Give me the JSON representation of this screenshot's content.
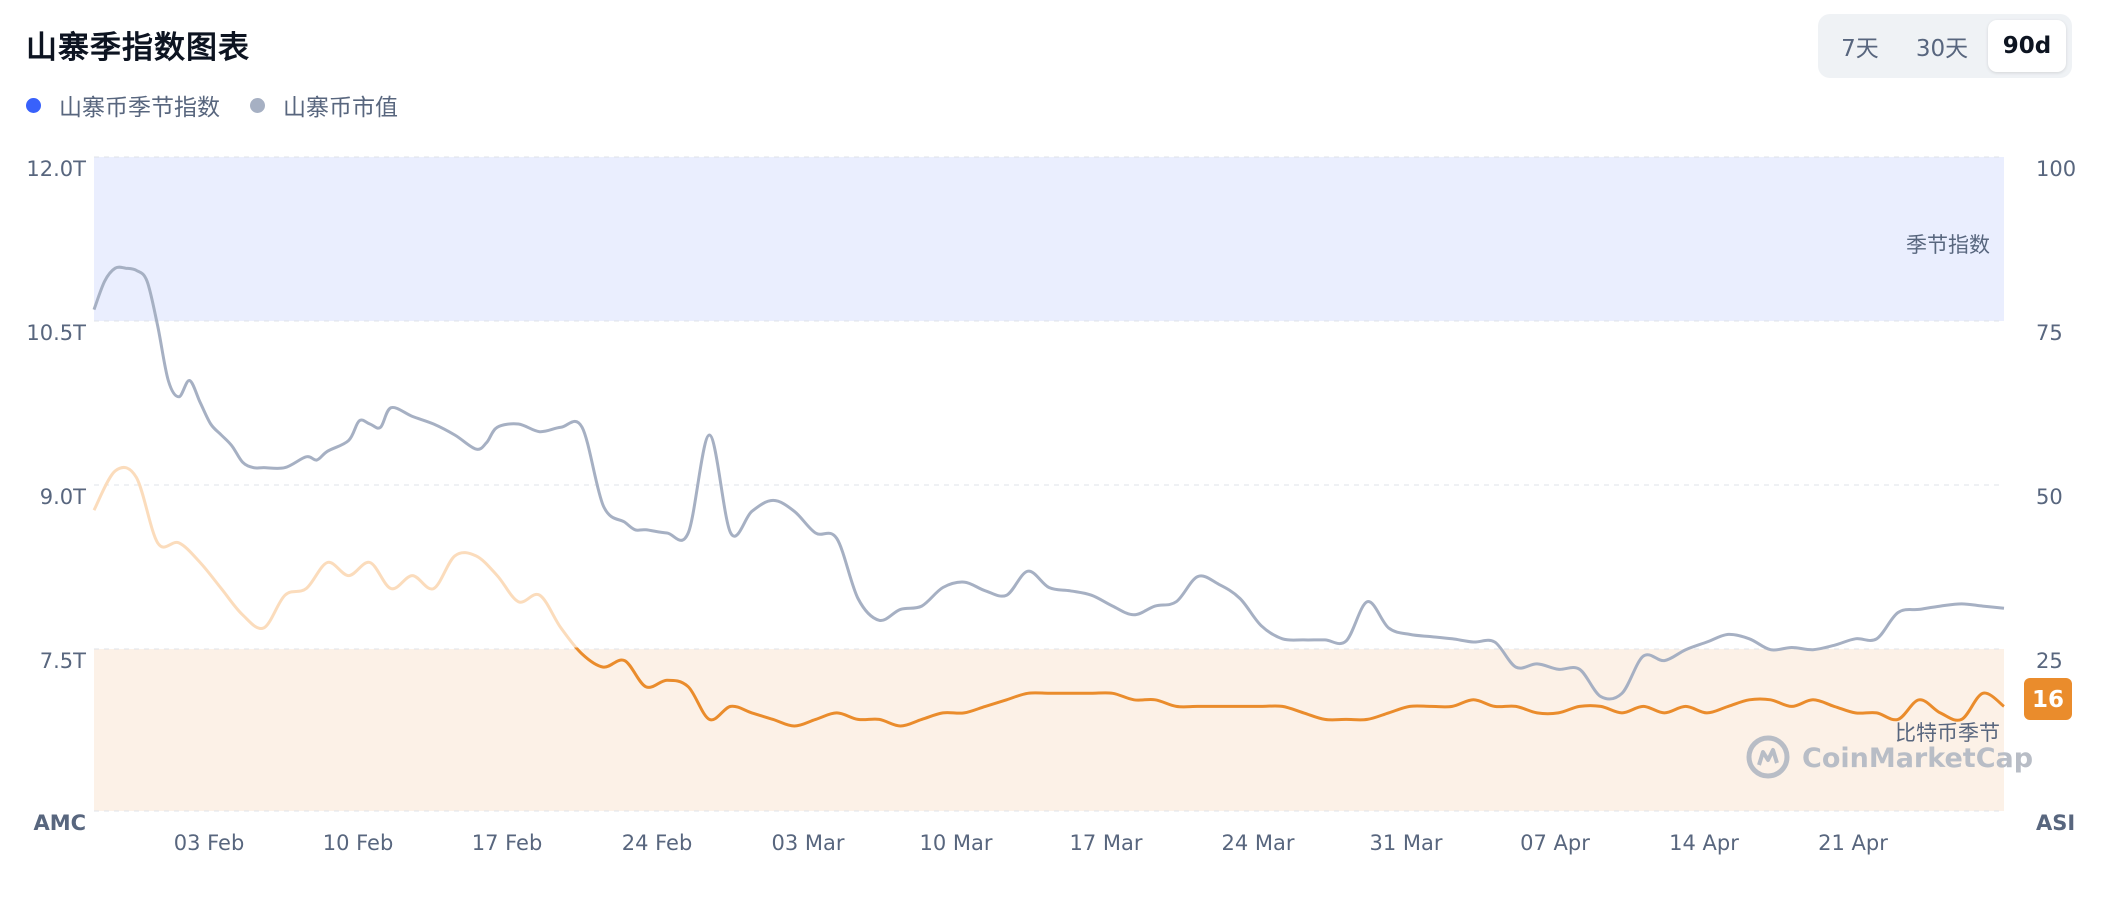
{
  "title": "山寨季指数图表",
  "legend": [
    {
      "label": "山寨币季节指数",
      "color": "#3861fb"
    },
    {
      "label": "山寨币市值",
      "color": "#a6b0c3"
    }
  ],
  "range_buttons": [
    {
      "label": "7天",
      "active": false
    },
    {
      "label": "30天",
      "active": false
    },
    {
      "label": "90d",
      "active": true
    }
  ],
  "zones": {
    "altcoin_season": "季节指数",
    "bitcoin_season": "比特币季节"
  },
  "watermark": "CoinMarketCap",
  "current_index_badge": "16",
  "chart_data": {
    "type": "line",
    "left_axis_title": "AMC",
    "right_axis_title": "ASI",
    "left_ticks": [
      "12.0T",
      "10.5T",
      "9.0T",
      "7.5T"
    ],
    "right_ticks": [
      "100",
      "75",
      "50",
      "25"
    ],
    "x_ticks": [
      "03 Feb",
      "10 Feb",
      "17 Feb",
      "24 Feb",
      "03 Mar",
      "10 Mar",
      "17 Mar",
      "24 Mar",
      "31 Mar",
      "07 Apr",
      "14 Apr",
      "21 Apr"
    ],
    "left_ylim": [
      6.0,
      12.0
    ],
    "right_ylim": [
      0,
      100
    ],
    "day_range": [
      0,
      90
    ],
    "x_tick_days": [
      8,
      15,
      22,
      29,
      36,
      43,
      50,
      57,
      64,
      71,
      78,
      85
    ],
    "grid": true,
    "legend_position": "top-left",
    "series": [
      {
        "name": "山寨币市值",
        "axis": "left",
        "color": "#a6b0c3",
        "points": [
          [
            0,
            10.6
          ],
          [
            0.5,
            10.86
          ],
          [
            1,
            10.98
          ],
          [
            1.5,
            10.98
          ],
          [
            2,
            10.96
          ],
          [
            2.5,
            10.86
          ],
          [
            3,
            10.45
          ],
          [
            3.5,
            9.95
          ],
          [
            4,
            9.8
          ],
          [
            4.5,
            9.95
          ],
          [
            5,
            9.75
          ],
          [
            5.5,
            9.55
          ],
          [
            6,
            9.45
          ],
          [
            6.5,
            9.35
          ],
          [
            7,
            9.2
          ],
          [
            7.5,
            9.15
          ],
          [
            8,
            9.15
          ],
          [
            9,
            9.15
          ],
          [
            10,
            9.25
          ],
          [
            10.5,
            9.22
          ],
          [
            11,
            9.3
          ],
          [
            12,
            9.4
          ],
          [
            12.5,
            9.58
          ],
          [
            13,
            9.55
          ],
          [
            13.5,
            9.52
          ],
          [
            14,
            9.7
          ],
          [
            15,
            9.62
          ],
          [
            16,
            9.55
          ],
          [
            17,
            9.45
          ],
          [
            18,
            9.32
          ],
          [
            18.5,
            9.38
          ],
          [
            19,
            9.52
          ],
          [
            20,
            9.55
          ],
          [
            21,
            9.48
          ],
          [
            22,
            9.52
          ],
          [
            23,
            9.52
          ],
          [
            24,
            8.8
          ],
          [
            25,
            8.65
          ],
          [
            25.5,
            8.58
          ],
          [
            26,
            8.58
          ],
          [
            27,
            8.55
          ],
          [
            28,
            8.55
          ],
          [
            29,
            9.45
          ],
          [
            30,
            8.55
          ],
          [
            31,
            8.75
          ],
          [
            32,
            8.85
          ],
          [
            33,
            8.75
          ],
          [
            34,
            8.55
          ],
          [
            35,
            8.5
          ],
          [
            36,
            7.95
          ],
          [
            37,
            7.75
          ],
          [
            38,
            7.85
          ],
          [
            39,
            7.88
          ],
          [
            40,
            8.05
          ],
          [
            41,
            8.1
          ],
          [
            42,
            8.02
          ],
          [
            43,
            7.98
          ],
          [
            44,
            8.2
          ],
          [
            45,
            8.05
          ],
          [
            46,
            8.02
          ],
          [
            47,
            7.98
          ],
          [
            48,
            7.88
          ],
          [
            49,
            7.8
          ],
          [
            50,
            7.88
          ],
          [
            51,
            7.92
          ],
          [
            52,
            8.15
          ],
          [
            53,
            8.08
          ],
          [
            54,
            7.95
          ],
          [
            55,
            7.7
          ],
          [
            56,
            7.58
          ],
          [
            57,
            7.57
          ],
          [
            58,
            7.57
          ],
          [
            59,
            7.56
          ],
          [
            60,
            7.92
          ],
          [
            61,
            7.68
          ],
          [
            62,
            7.62
          ],
          [
            63,
            7.6
          ],
          [
            64,
            7.58
          ],
          [
            65,
            7.55
          ],
          [
            66,
            7.55
          ],
          [
            67,
            7.32
          ],
          [
            68,
            7.35
          ],
          [
            69,
            7.3
          ],
          [
            70,
            7.3
          ],
          [
            71,
            7.05
          ],
          [
            72,
            7.08
          ],
          [
            73,
            7.42
          ],
          [
            74,
            7.38
          ],
          [
            75,
            7.48
          ],
          [
            76,
            7.55
          ],
          [
            77,
            7.62
          ],
          [
            78,
            7.58
          ],
          [
            79,
            7.48
          ],
          [
            80,
            7.5
          ],
          [
            81,
            7.48
          ],
          [
            82,
            7.52
          ],
          [
            83,
            7.58
          ],
          [
            84,
            7.58
          ],
          [
            85,
            7.82
          ],
          [
            86,
            7.85
          ],
          [
            87,
            7.88
          ],
          [
            88,
            7.9
          ],
          [
            89,
            7.88
          ],
          [
            90,
            7.86
          ]
        ]
      },
      {
        "name": "山寨币季节指数",
        "axis": "right",
        "color": "#ea8c2c",
        "points": [
          [
            0,
            46
          ],
          [
            1,
            52
          ],
          [
            2,
            51
          ],
          [
            3,
            41
          ],
          [
            4,
            41
          ],
          [
            5,
            38
          ],
          [
            6,
            34
          ],
          [
            7,
            30
          ],
          [
            8,
            28
          ],
          [
            9,
            33
          ],
          [
            10,
            34
          ],
          [
            11,
            38
          ],
          [
            12,
            36
          ],
          [
            13,
            38
          ],
          [
            14,
            34
          ],
          [
            15,
            36
          ],
          [
            16,
            34
          ],
          [
            17,
            39
          ],
          [
            18,
            39
          ],
          [
            19,
            36
          ],
          [
            20,
            32
          ],
          [
            21,
            33
          ],
          [
            22,
            28
          ],
          [
            23,
            24
          ],
          [
            24,
            22
          ],
          [
            25,
            23
          ],
          [
            26,
            19
          ],
          [
            27,
            20
          ],
          [
            28,
            19
          ],
          [
            29,
            14
          ],
          [
            30,
            16
          ],
          [
            31,
            15
          ],
          [
            32,
            14
          ],
          [
            33,
            13
          ],
          [
            34,
            14
          ],
          [
            35,
            15
          ],
          [
            36,
            14
          ],
          [
            37,
            14
          ],
          [
            38,
            13
          ],
          [
            39,
            14
          ],
          [
            40,
            15
          ],
          [
            41,
            15
          ],
          [
            42,
            16
          ],
          [
            43,
            17
          ],
          [
            44,
            18
          ],
          [
            45,
            18
          ],
          [
            46,
            18
          ],
          [
            47,
            18
          ],
          [
            48,
            18
          ],
          [
            49,
            17
          ],
          [
            50,
            17
          ],
          [
            51,
            16
          ],
          [
            52,
            16
          ],
          [
            53,
            16
          ],
          [
            54,
            16
          ],
          [
            55,
            16
          ],
          [
            56,
            16
          ],
          [
            57,
            15
          ],
          [
            58,
            14
          ],
          [
            59,
            14
          ],
          [
            60,
            14
          ],
          [
            61,
            15
          ],
          [
            62,
            16
          ],
          [
            63,
            16
          ],
          [
            64,
            16
          ],
          [
            65,
            17
          ],
          [
            66,
            16
          ],
          [
            67,
            16
          ],
          [
            68,
            15
          ],
          [
            69,
            15
          ],
          [
            70,
            16
          ],
          [
            71,
            16
          ],
          [
            72,
            15
          ],
          [
            73,
            16
          ],
          [
            74,
            15
          ],
          [
            75,
            16
          ],
          [
            76,
            15
          ],
          [
            77,
            16
          ],
          [
            78,
            17
          ],
          [
            79,
            17
          ],
          [
            80,
            16
          ],
          [
            81,
            17
          ],
          [
            82,
            16
          ],
          [
            83,
            15
          ],
          [
            84,
            15
          ],
          [
            85,
            14
          ],
          [
            86,
            17
          ],
          [
            87,
            15
          ],
          [
            88,
            14
          ],
          [
            89,
            18
          ],
          [
            90,
            16
          ]
        ]
      }
    ]
  }
}
